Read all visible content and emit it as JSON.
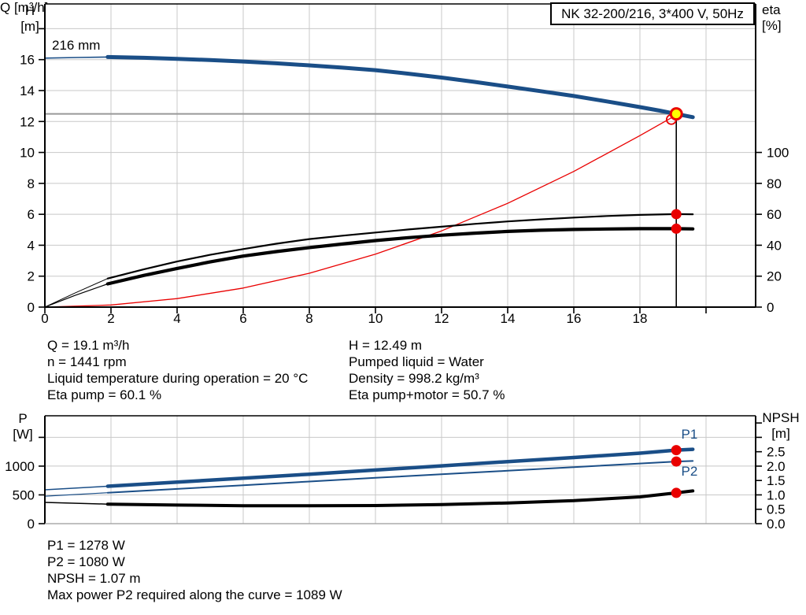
{
  "title_box": "NK 32-200/216, 3*400 V, 50Hz",
  "impeller_label": "216 mm",
  "top_chart": {
    "y_left_name": "H",
    "y_left_unit": "[m]",
    "y_right_name": "eta",
    "y_right_unit": "[%]",
    "x_axis_label": "Q [m³/h]"
  },
  "bottom_chart": {
    "y_left_name": "P",
    "y_left_unit": "[W]",
    "y_right_name": "NPSH",
    "y_right_unit": "[m]"
  },
  "info_top_left": {
    "line1": "Q = 19.1 m³/h",
    "line2": "n = 1441 rpm",
    "line3": "Liquid temperature during operation = 20 °C",
    "line4": "Eta pump = 60.1 %"
  },
  "info_top_right": {
    "line1": "H = 12.49 m",
    "line2": "Pumped liquid = Water",
    "line3": "Density = 998.2 kg/m³",
    "line4": "Eta pump+motor = 50.7 %"
  },
  "info_bottom": {
    "line1": "P1 = 1278 W",
    "line2": "P2 = 1080 W",
    "line3": "NPSH = 1.07 m",
    "line4": "Max power P2 required along the curve = 1089 W"
  },
  "colors": {
    "curve_blue": "#1a4e87",
    "curve_black": "#000000",
    "system_red": "#e90000",
    "marker_red": "#e90000",
    "marker_yellow": "#ffff00",
    "grid": "#c8c8c8",
    "duty_gray": "#999999",
    "frame": "#000000"
  },
  "chart_data": [
    {
      "id": "hq-eta-chart",
      "type": "line",
      "title": "NK 32-200/216, 3*400 V, 50Hz",
      "xlabel": "Q [m³/h]",
      "ylabel_left": "H [m]",
      "ylabel_right": "eta [%]",
      "xlim": [
        0,
        21.5
      ],
      "ylim_left": [
        0,
        19.6
      ],
      "ylim_right": [
        0,
        196
      ],
      "show_x_tick_labels": true,
      "x_ticks": [
        {
          "v": 0,
          "l": "0"
        },
        {
          "v": 2,
          "l": "2"
        },
        {
          "v": 4,
          "l": "4"
        },
        {
          "v": 6,
          "l": "6"
        },
        {
          "v": 8,
          "l": "8"
        },
        {
          "v": 10,
          "l": "10"
        },
        {
          "v": 12,
          "l": "12"
        },
        {
          "v": 14,
          "l": "14"
        },
        {
          "v": 16,
          "l": "16"
        },
        {
          "v": 18,
          "l": "18"
        },
        {
          "v": 20,
          "l": ""
        }
      ],
      "y_left_ticks": [
        {
          "v": 0,
          "l": "0"
        },
        {
          "v": 2,
          "l": "2"
        },
        {
          "v": 4,
          "l": "4"
        },
        {
          "v": 6,
          "l": "6"
        },
        {
          "v": 8,
          "l": "8"
        },
        {
          "v": 10,
          "l": "10"
        },
        {
          "v": 12,
          "l": "12"
        },
        {
          "v": 14,
          "l": "14"
        },
        {
          "v": 16,
          "l": "16"
        },
        {
          "v": 18,
          "l": ""
        }
      ],
      "y_right_ticks": [
        {
          "v": 0,
          "l": "0"
        },
        {
          "v": 20,
          "l": "20"
        },
        {
          "v": 40,
          "l": "40"
        },
        {
          "v": 60,
          "l": "60"
        },
        {
          "v": 80,
          "l": "80"
        },
        {
          "v": 100,
          "l": "100"
        }
      ],
      "x_grid": [
        2,
        4,
        6,
        8,
        10,
        12,
        14,
        16,
        18,
        20
      ],
      "y_grid": [
        2,
        4,
        6,
        8,
        10,
        12,
        14,
        16,
        18
      ],
      "duty_point": {
        "q": 19.1,
        "h": 12.49,
        "eta_pump": 60.1,
        "eta_pump_motor": 50.7
      },
      "duty_lines": {
        "h": 12.49,
        "h_to_q": 19.1,
        "v_at_q": 19.1,
        "v_to_h": 12.49
      },
      "series": [
        {
          "name": "system-curve",
          "axis": "left",
          "color": "#e90000",
          "width": 1.3,
          "points": [
            [
              0,
              0
            ],
            [
              2,
              0.14
            ],
            [
              4,
              0.55
            ],
            [
              6,
              1.23
            ],
            [
              8,
              2.19
            ],
            [
              10,
              3.42
            ],
            [
              12,
              4.93
            ],
            [
              14,
              6.71
            ],
            [
              16,
              8.77
            ],
            [
              18,
              11.09
            ],
            [
              19.0,
              12.3
            ]
          ]
        },
        {
          "name": "eta-pump-curve",
          "axis": "right",
          "color": "#000000",
          "width": 2.2,
          "solid_from": 1.9,
          "thin_width": 1,
          "points": [
            [
              0,
              0
            ],
            [
              0.9,
              9
            ],
            [
              1.9,
              18.5
            ],
            [
              3,
              24.5
            ],
            [
              4,
              29.5
            ],
            [
              5,
              33.8
            ],
            [
              6,
              37.5
            ],
            [
              7,
              41
            ],
            [
              8,
              44
            ],
            [
              9,
              46.2
            ],
            [
              10,
              48.2
            ],
            [
              11,
              50.2
            ],
            [
              12,
              52
            ],
            [
              13,
              53.8
            ],
            [
              14,
              55.4
            ],
            [
              15,
              56.7
            ],
            [
              16,
              57.9
            ],
            [
              17,
              58.9
            ],
            [
              18,
              59.6
            ],
            [
              19.1,
              60.1
            ],
            [
              19.6,
              60
            ]
          ]
        },
        {
          "name": "eta-pump-motor-curve",
          "axis": "right",
          "color": "#000000",
          "width": 4.2,
          "solid_from": 1.9,
          "thin_width": 1.2,
          "points": [
            [
              0,
              0
            ],
            [
              0.9,
              7.5
            ],
            [
              1.9,
              15
            ],
            [
              3,
              20.5
            ],
            [
              4,
              25
            ],
            [
              5,
              29.2
            ],
            [
              6,
              33
            ],
            [
              7,
              35.9
            ],
            [
              8,
              38.5
            ],
            [
              9,
              40.8
            ],
            [
              10,
              43
            ],
            [
              11,
              44.9
            ],
            [
              12,
              46.5
            ],
            [
              13,
              47.8
            ],
            [
              14,
              48.9
            ],
            [
              15,
              49.7
            ],
            [
              16,
              50.2
            ],
            [
              17,
              50.5
            ],
            [
              18,
              50.7
            ],
            [
              19.1,
              50.7
            ],
            [
              19.6,
              50.55
            ]
          ]
        },
        {
          "name": "head-curve",
          "axis": "left",
          "color": "#1a4e87",
          "width": 5,
          "solid_from": 1.9,
          "thin_width": 1.6,
          "points": [
            [
              0,
              16.1
            ],
            [
              1,
              16.14
            ],
            [
              1.9,
              16.17
            ],
            [
              3,
              16.12
            ],
            [
              4,
              16.05
            ],
            [
              5,
              15.97
            ],
            [
              6,
              15.88
            ],
            [
              7,
              15.76
            ],
            [
              8,
              15.63
            ],
            [
              9,
              15.48
            ],
            [
              10,
              15.32
            ],
            [
              11,
              15.09
            ],
            [
              12,
              14.84
            ],
            [
              13,
              14.56
            ],
            [
              14,
              14.26
            ],
            [
              15,
              13.96
            ],
            [
              16,
              13.65
            ],
            [
              17,
              13.3
            ],
            [
              18,
              12.93
            ],
            [
              18.6,
              12.7
            ],
            [
              19.1,
              12.49
            ],
            [
              19.6,
              12.28
            ]
          ]
        }
      ],
      "markers": [
        {
          "name": "duty-ring-marker",
          "axis": "left",
          "q": 18.95,
          "v": 12.13,
          "style": "ring",
          "r": 6
        },
        {
          "name": "eta-pump-duty-dot",
          "axis": "right",
          "q": 19.1,
          "v": 60.1,
          "style": "dot",
          "r": 6.5
        },
        {
          "name": "eta-pump-motor-duty-dot",
          "axis": "right",
          "q": 19.1,
          "v": 50.7,
          "style": "dot",
          "r": 6.5
        },
        {
          "name": "duty-point-marker",
          "axis": "left",
          "q": 19.1,
          "v": 12.49,
          "style": "yellow",
          "r": 7
        }
      ],
      "curve_labels": []
    },
    {
      "id": "power-npsh-chart",
      "type": "line",
      "title": "",
      "xlabel": "",
      "ylabel_left": "P [W]",
      "ylabel_right": "NPSH [m]",
      "xlim": [
        0,
        21.5
      ],
      "ylim_left": [
        0,
        1875
      ],
      "ylim_right": [
        0,
        3.75
      ],
      "show_x_tick_labels": false,
      "x_ticks": [],
      "y_left_ticks": [
        {
          "v": 0,
          "l": "0"
        },
        {
          "v": 500,
          "l": "500"
        },
        {
          "v": 1000,
          "l": "1000"
        },
        {
          "v": 1500,
          "l": ""
        }
      ],
      "y_right_ticks": [
        {
          "v": 0,
          "l": "0.0"
        },
        {
          "v": 0.5,
          "l": "0.5"
        },
        {
          "v": 1,
          "l": "1.0"
        },
        {
          "v": 1.5,
          "l": "1.5"
        },
        {
          "v": 2,
          "l": "2.0"
        },
        {
          "v": 2.5,
          "l": "2.5"
        },
        {
          "v": 3,
          "l": ""
        },
        {
          "v": 3.5,
          "l": ""
        }
      ],
      "x_grid": [
        2,
        4,
        6,
        8,
        10,
        12,
        14,
        16,
        18,
        20
      ],
      "y_grid": [
        500,
        1000,
        1500
      ],
      "duty_point": {
        "q": 19.1,
        "p1": 1278,
        "p2": 1080,
        "npsh": 1.07
      },
      "series": [
        {
          "name": "p1-curve",
          "axis": "left",
          "color": "#1a4e87",
          "width": 4.5,
          "solid_from": 1.9,
          "thin_width": 1.5,
          "points": [
            [
              0,
              588
            ],
            [
              1.9,
              650
            ],
            [
              4,
              722
            ],
            [
              6,
              790
            ],
            [
              8,
              860
            ],
            [
              10,
              932
            ],
            [
              12,
              1005
            ],
            [
              14,
              1078
            ],
            [
              16,
              1150
            ],
            [
              18,
              1225
            ],
            [
              19.1,
              1278
            ],
            [
              19.6,
              1292
            ]
          ]
        },
        {
          "name": "p2-curve",
          "axis": "left",
          "color": "#1a4e87",
          "width": 2,
          "solid_from": 1.9,
          "thin_width": 1.2,
          "points": [
            [
              0,
              478
            ],
            [
              1.9,
              538
            ],
            [
              4,
              604
            ],
            [
              6,
              668
            ],
            [
              8,
              732
            ],
            [
              10,
              796
            ],
            [
              12,
              858
            ],
            [
              14,
              920
            ],
            [
              16,
              982
            ],
            [
              18,
              1046
            ],
            [
              19.1,
              1080
            ],
            [
              19.6,
              1089
            ]
          ]
        },
        {
          "name": "npsh-curve",
          "axis": "right",
          "color": "#000000",
          "width": 4,
          "solid_from": 1.9,
          "thin_width": 1.5,
          "points": [
            [
              0,
              0.74
            ],
            [
              1.9,
              0.68
            ],
            [
              4,
              0.645
            ],
            [
              6,
              0.625
            ],
            [
              8,
              0.62
            ],
            [
              10,
              0.63
            ],
            [
              12,
              0.665
            ],
            [
              14,
              0.72
            ],
            [
              16,
              0.8
            ],
            [
              18,
              0.93
            ],
            [
              19.1,
              1.07
            ],
            [
              19.6,
              1.14
            ]
          ]
        }
      ],
      "markers": [
        {
          "name": "p1-duty-dot",
          "axis": "left",
          "q": 19.1,
          "v": 1278,
          "style": "dot",
          "r": 6.5
        },
        {
          "name": "p2-duty-dot",
          "axis": "left",
          "q": 19.1,
          "v": 1080,
          "style": "dot",
          "r": 6.5
        },
        {
          "name": "npsh-duty-dot",
          "axis": "right",
          "q": 19.1,
          "v": 1.07,
          "style": "dot",
          "r": 6.5
        }
      ],
      "curve_labels": [
        {
          "text": "P1",
          "q": 19.25,
          "v": 1480,
          "color": "#1a4e87",
          "name": "p1-curve-label"
        },
        {
          "text": "P2",
          "q": 19.25,
          "v": 835,
          "color": "#1a4e87",
          "name": "p2-curve-label"
        }
      ]
    }
  ]
}
